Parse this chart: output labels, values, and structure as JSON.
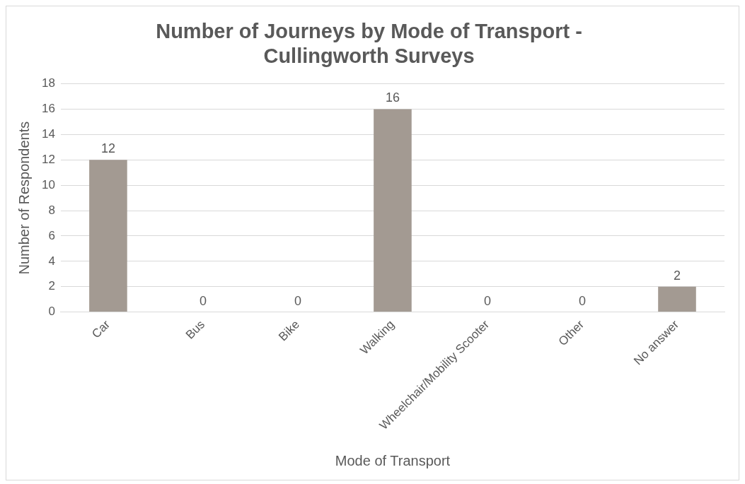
{
  "chart_data": {
    "type": "bar",
    "title": "Number of Journeys by Mode of Transport - Cullingworth Surveys",
    "xlabel": "Mode of Transport",
    "ylabel": "Number of Respondents",
    "categories": [
      "Car",
      "Bus",
      "Bike",
      "Walking",
      "Wheelchair/Mobility Scooter",
      "Other",
      "No answer"
    ],
    "values": [
      12,
      0,
      0,
      16,
      0,
      0,
      2
    ],
    "color": "#a39a92",
    "ylim": [
      0,
      18
    ],
    "yticks": [
      0,
      2,
      4,
      6,
      8,
      10,
      12,
      14,
      16,
      18
    ],
    "grid": "y",
    "data_labels": true
  }
}
